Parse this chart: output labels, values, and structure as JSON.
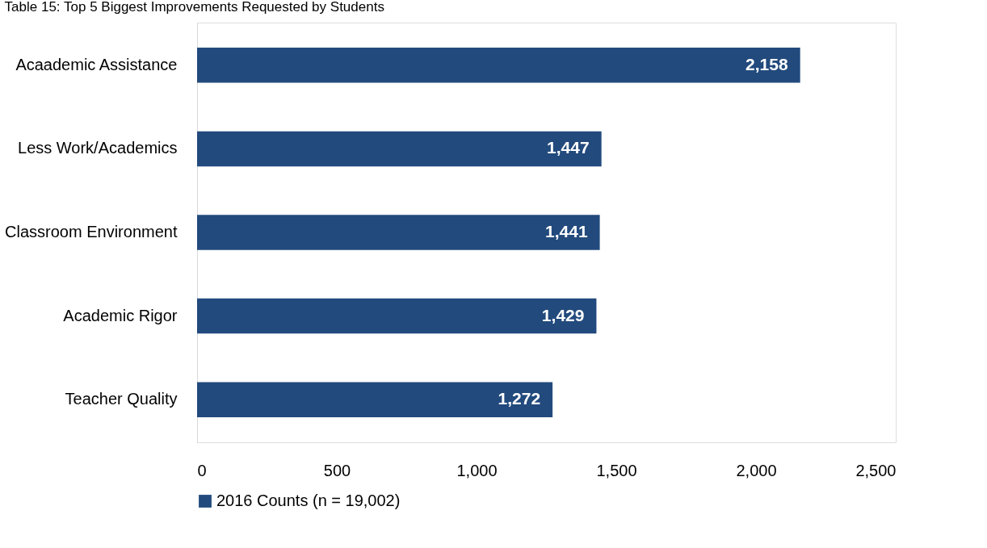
{
  "chart_data": {
    "type": "bar",
    "orientation": "horizontal",
    "title": "Table 15: Top 5 Biggest Improvements Requested by Students",
    "categories": [
      "Acaademic Assistance",
      "Less Work/Academics",
      "Classroom Environment",
      "Academic Rigor",
      "Teacher Quality"
    ],
    "series": [
      {
        "name": "2016 Counts (n = 19,002)",
        "color": "#224a7d",
        "values": [
          2158,
          1447,
          1441,
          1429,
          1272
        ]
      }
    ],
    "value_labels": [
      "2,158",
      "1,447",
      "1,441",
      "1,429",
      "1,272"
    ],
    "xlim": [
      0,
      2500
    ],
    "xticks": [
      0,
      {
        "value": 500,
        "label": "500"
      },
      {
        "value": 1000,
        "label": "1,000"
      },
      {
        "value": 1500,
        "label": "1,500"
      },
      {
        "value": 2000,
        "label": "2,000"
      },
      {
        "value": 2500,
        "label": "2,500"
      }
    ],
    "grid": false,
    "legend": "bottom"
  }
}
